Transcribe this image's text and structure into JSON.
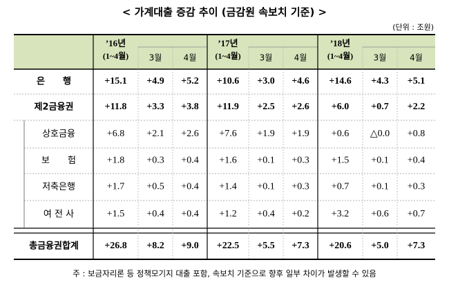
{
  "title": "< 가계대출 증감 추이 (금감원 속보치 기준) >",
  "unit": "(단위 : 조원)",
  "table": {
    "groups": [
      {
        "year": "’16년",
        "period": "(1~4월)",
        "months": [
          "3월",
          "4월"
        ]
      },
      {
        "year": "’17년",
        "period": "(1~4월)",
        "months": [
          "3월",
          "4월"
        ]
      },
      {
        "year": "’18년",
        "period": "(1~4월)",
        "months": [
          "3월",
          "4월"
        ]
      }
    ],
    "rows": [
      {
        "label": "은　　행",
        "values": [
          "+15.1",
          "+4.9",
          "+5.2",
          "+10.6",
          "+3.0",
          "+4.6",
          "+14.6",
          "+4.3",
          "+5.1"
        ]
      },
      {
        "label": "제2금융권",
        "values": [
          "+11.8",
          "+3.3",
          "+3.8",
          "+11.9",
          "+2.5",
          "+2.6",
          "+6.0",
          "+0.7",
          "+2.2"
        ]
      },
      {
        "label": "상호금융",
        "values": [
          "+6.8",
          "+2.1",
          "+2.6",
          "+7.6",
          "+1.9",
          "+1.9",
          "+0.6",
          "△0.0",
          "+0.8"
        ]
      },
      {
        "label": "보　　험",
        "values": [
          "+1.8",
          "+0.3",
          "+0.4",
          "+1.6",
          "+0.1",
          "+0.3",
          "+1.5",
          "+0.1",
          "+0.4"
        ]
      },
      {
        "label": "저축은행",
        "values": [
          "+1.7",
          "+0.5",
          "+0.4",
          "+1.4",
          "+0.1",
          "+0.3",
          "+0.7",
          "+0.1",
          "+0.3"
        ]
      },
      {
        "label": "여 전 사",
        "values": [
          "+1.5",
          "+0.4",
          "+0.4",
          "+1.2",
          "+0.4",
          "+0.2",
          "+3.2",
          "+0.6",
          "+0.7"
        ]
      },
      {
        "label": "총금융권합계",
        "values": [
          "+26.8",
          "+8.2",
          "+9.0",
          "+22.5",
          "+5.5",
          "+7.3",
          "+20.6",
          "+5.0",
          "+7.3"
        ]
      }
    ]
  },
  "footnote": "주 : 보금자리론 등 정책모기지 대출 포함, 속보치 기준으로 향후 일부 차이가 발생할 수 있음"
}
